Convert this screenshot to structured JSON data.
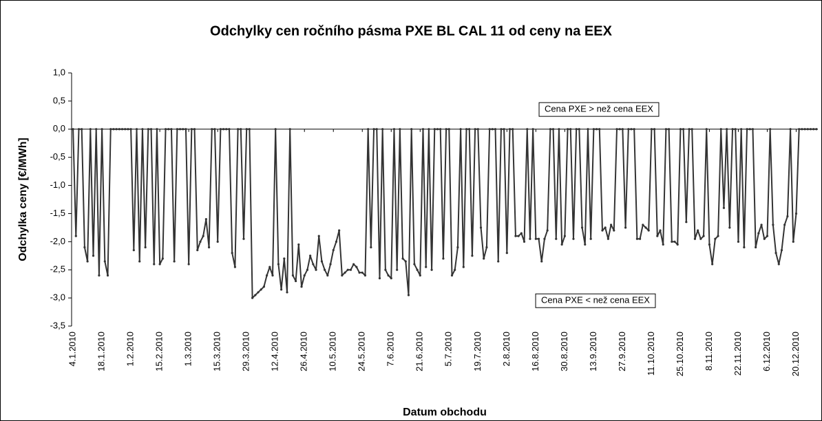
{
  "chart_data": {
    "type": "line",
    "title": "Odchylky cen ročního pásma PXE BL CAL 11 od ceny na EEX",
    "y_label": "Odchylka ceny [€/MWh]",
    "x_label": "Datum obchodu",
    "annotations": [
      "Cena PXE > než cena EEX",
      "Cena PXE < než cena EEX"
    ],
    "ylim": [
      -3.5,
      1
    ],
    "yticks": [
      {
        "value": 1,
        "label": "1,0"
      },
      {
        "value": 0.5,
        "label": "0,5"
      },
      {
        "value": 0,
        "label": "0,0"
      },
      {
        "value": -0.5,
        "label": "-0,5"
      },
      {
        "value": -1,
        "label": "-1,0"
      },
      {
        "value": -1.5,
        "label": "-1,5"
      },
      {
        "value": -2,
        "label": "-2,0"
      },
      {
        "value": -2.5,
        "label": "-2,5"
      },
      {
        "value": -3,
        "label": "-3,0"
      },
      {
        "value": -3.5,
        "label": "-3,5"
      }
    ],
    "grid": false,
    "categories": [
      "4.1.2010",
      null,
      null,
      null,
      null,
      null,
      null,
      null,
      null,
      null,
      "18.1.2010",
      null,
      null,
      null,
      null,
      null,
      null,
      null,
      null,
      null,
      "1.2.2010",
      null,
      null,
      null,
      null,
      null,
      null,
      null,
      null,
      null,
      "15.2.2010",
      null,
      null,
      null,
      null,
      null,
      null,
      null,
      null,
      null,
      "1.3.2010",
      null,
      null,
      null,
      null,
      null,
      null,
      null,
      null,
      null,
      "15.3.2010",
      null,
      null,
      null,
      null,
      null,
      null,
      null,
      null,
      null,
      "29.3.2010",
      null,
      null,
      null,
      null,
      null,
      null,
      null,
      null,
      null,
      "12.4.2010",
      null,
      null,
      null,
      null,
      null,
      null,
      null,
      null,
      null,
      "26.4.2010",
      null,
      null,
      null,
      null,
      null,
      null,
      null,
      null,
      null,
      "10.5.2010",
      null,
      null,
      null,
      null,
      null,
      null,
      null,
      null,
      null,
      "24.5.2010",
      null,
      null,
      null,
      null,
      null,
      null,
      null,
      null,
      null,
      "7.6.2010",
      null,
      null,
      null,
      null,
      null,
      null,
      null,
      null,
      null,
      "21.6.2010",
      null,
      null,
      null,
      null,
      null,
      null,
      null,
      null,
      null,
      "5.7.2010",
      null,
      null,
      null,
      null,
      null,
      null,
      null,
      null,
      null,
      "19.7.2010",
      null,
      null,
      null,
      null,
      null,
      null,
      null,
      null,
      null,
      "2.8.2010",
      null,
      null,
      null,
      null,
      null,
      null,
      null,
      null,
      null,
      "16.8.2010",
      null,
      null,
      null,
      null,
      null,
      null,
      null,
      null,
      null,
      "30.8.2010",
      null,
      null,
      null,
      null,
      null,
      null,
      null,
      null,
      null,
      "13.9.2010",
      null,
      null,
      null,
      null,
      null,
      null,
      null,
      null,
      null,
      "27.9.2010",
      null,
      null,
      null,
      null,
      null,
      null,
      null,
      null,
      null,
      "11.10.2010",
      null,
      null,
      null,
      null,
      null,
      null,
      null,
      null,
      null,
      "25.10.2010",
      null,
      null,
      null,
      null,
      null,
      null,
      null,
      null,
      null,
      "8.11.2010",
      null,
      null,
      null,
      null,
      null,
      null,
      null,
      null,
      null,
      "22.11.2010",
      null,
      null,
      null,
      null,
      null,
      null,
      null,
      null,
      null,
      "6.12.2010",
      null,
      null,
      null,
      null,
      null,
      null,
      null,
      null,
      null,
      "20.12.2010",
      null,
      null,
      null,
      null,
      null,
      null,
      null
    ],
    "series": [
      {
        "color": "#333333",
        "values": [
          0,
          -1.9,
          0,
          0,
          -2.1,
          -2.35,
          0,
          -2.25,
          0,
          -2.6,
          0,
          -2.35,
          -2.6,
          0,
          0,
          0,
          0,
          0,
          0,
          0,
          0,
          -2.15,
          0,
          -2.35,
          0,
          -2.1,
          0,
          0,
          -2.4,
          0,
          -2.4,
          -2.3,
          0,
          0,
          0,
          -2.35,
          0,
          0,
          0,
          0,
          -2.4,
          0,
          0,
          -2.15,
          -2.0,
          -1.9,
          -1.6,
          -2.1,
          0,
          0,
          -2.0,
          0,
          0,
          0,
          0,
          -2.2,
          -2.45,
          0,
          0,
          -1.95,
          0,
          0,
          -3.0,
          -2.95,
          -2.9,
          -2.85,
          -2.8,
          -2.6,
          -2.45,
          -2.6,
          0,
          -2.4,
          -2.85,
          -2.3,
          -2.9,
          0,
          -2.6,
          -2.7,
          -2.05,
          -2.8,
          -2.6,
          -2.5,
          -2.25,
          -2.4,
          -2.5,
          -1.9,
          -2.35,
          -2.5,
          -2.6,
          -2.4,
          -2.15,
          -2.0,
          -1.8,
          -2.6,
          -2.55,
          -2.5,
          -2.5,
          -2.4,
          -2.45,
          -2.55,
          -2.55,
          -2.6,
          0,
          -2.1,
          0,
          0,
          -2.65,
          0,
          -2.5,
          -2.6,
          -2.65,
          0,
          -2.5,
          0,
          -2.3,
          -2.35,
          -2.95,
          0,
          -2.4,
          -2.5,
          -2.6,
          0,
          -2.45,
          0,
          -2.5,
          0,
          0,
          0,
          -2.3,
          0,
          0,
          -2.6,
          -2.5,
          -2.1,
          0,
          -2.45,
          0,
          0,
          -2.25,
          0,
          0,
          -1.75,
          -2.3,
          -2.1,
          0,
          0,
          0,
          -2.35,
          0,
          0,
          -2.2,
          0,
          0,
          -1.9,
          -1.9,
          -1.85,
          -2.0,
          0,
          -1.95,
          0,
          -1.95,
          -1.95,
          -2.35,
          -1.95,
          -1.8,
          0,
          0,
          -1.95,
          0,
          -2.05,
          -1.9,
          0,
          0,
          -1.95,
          0,
          0,
          -1.75,
          -2.05,
          0,
          -1.95,
          0,
          0,
          0,
          -1.8,
          -1.75,
          -1.95,
          -1.7,
          -1.8,
          0,
          0,
          0,
          -1.75,
          0,
          0,
          0,
          -1.95,
          -1.95,
          -1.7,
          -1.75,
          -1.8,
          0,
          0,
          -1.9,
          -1.8,
          -2.05,
          0,
          0,
          -2.0,
          -2.0,
          -2.05,
          0,
          0,
          -1.65,
          0,
          0,
          -1.95,
          -1.8,
          -1.95,
          -1.9,
          0,
          -2.05,
          -2.4,
          -1.95,
          -1.9,
          0,
          -1.4,
          0,
          -1.75,
          0,
          0,
          -2.0,
          0,
          -2.1,
          0,
          0,
          0,
          -2.1,
          -1.85,
          -1.7,
          -1.95,
          -1.9,
          0,
          -1.7,
          -2.2,
          -2.4,
          -2.15,
          -1.7,
          -1.55,
          0,
          -2.0,
          -1.5,
          0,
          0,
          0,
          0,
          0,
          0,
          0
        ]
      }
    ]
  }
}
